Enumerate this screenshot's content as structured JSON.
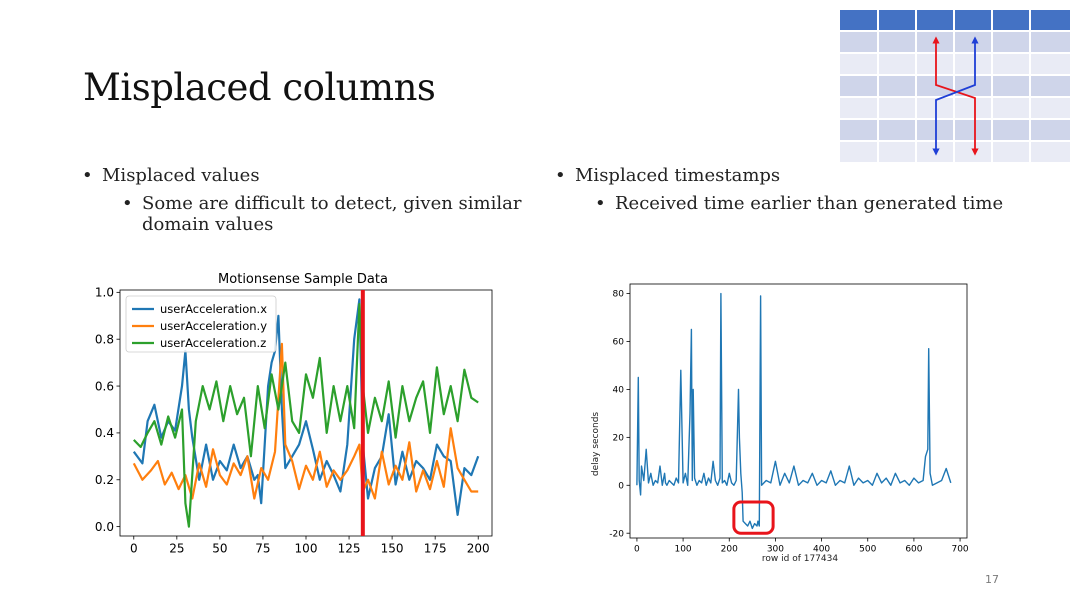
{
  "slide": {
    "title": "Misplaced columns",
    "page_number": "17",
    "left_bullets": {
      "level1": "Misplaced values",
      "level2": "Some are difficult to detect, given similar domain values"
    },
    "right_bullets": {
      "level1": "Misplaced timestamps",
      "level2": "Received time earlier than generated time"
    }
  },
  "colors": {
    "series_x": "#1f77b4",
    "series_y": "#ff7f0e",
    "series_z": "#2ca02c",
    "highlight_red": "#e8141b",
    "table_header": "#4472c4",
    "table_band_dark": "#cfd5ea",
    "table_band_light": "#e9ebf5",
    "arrow_red": "#e8141b",
    "arrow_blue": "#1f3fd6"
  },
  "icons": {
    "table_swap": "misplaced-columns-table-icon"
  },
  "chart_data": [
    {
      "type": "line",
      "title": "Motionsense Sample Data",
      "xlabel": "",
      "ylabel": "",
      "xlim": [
        -8,
        208
      ],
      "ylim": [
        -0.04,
        1.01
      ],
      "xticks": [
        0,
        25,
        50,
        75,
        100,
        125,
        150,
        175,
        200
      ],
      "yticks": [
        0.0,
        0.2,
        0.4,
        0.6,
        0.8,
        1.0
      ],
      "ytick_labels": [
        "0.0",
        "0.2",
        "0.4",
        "0.6",
        "0.8",
        "1.0"
      ],
      "legend_position": "upper-left",
      "grid": false,
      "vertical_marker": {
        "x": 133
      },
      "series": [
        {
          "name": "userAcceleration.x",
          "x": [
            0,
            5,
            8,
            12,
            16,
            20,
            24,
            28,
            30,
            32,
            34,
            38,
            42,
            46,
            50,
            54,
            58,
            62,
            66,
            70,
            72,
            74,
            76,
            78,
            80,
            82,
            84,
            86,
            88,
            92,
            96,
            100,
            104,
            108,
            112,
            116,
            120,
            124,
            128,
            131,
            133,
            136,
            140,
            144,
            148,
            152,
            156,
            160,
            164,
            168,
            172,
            176,
            180,
            184,
            188,
            192,
            196,
            200
          ],
          "values": [
            0.32,
            0.27,
            0.45,
            0.52,
            0.38,
            0.45,
            0.41,
            0.6,
            0.75,
            0.5,
            0.38,
            0.2,
            0.35,
            0.2,
            0.28,
            0.24,
            0.35,
            0.25,
            0.3,
            0.2,
            0.22,
            0.1,
            0.35,
            0.6,
            0.7,
            0.75,
            0.9,
            0.5,
            0.25,
            0.3,
            0.35,
            0.45,
            0.33,
            0.2,
            0.28,
            0.22,
            0.15,
            0.35,
            0.8,
            0.97,
            0.35,
            0.12,
            0.25,
            0.3,
            0.48,
            0.18,
            0.32,
            0.2,
            0.28,
            0.25,
            0.2,
            0.35,
            0.3,
            0.28,
            0.05,
            0.25,
            0.22,
            0.3
          ]
        },
        {
          "name": "userAcceleration.y",
          "x": [
            0,
            5,
            10,
            14,
            18,
            22,
            26,
            30,
            34,
            38,
            42,
            46,
            50,
            54,
            58,
            62,
            66,
            70,
            74,
            78,
            82,
            86,
            88,
            92,
            96,
            100,
            104,
            108,
            112,
            116,
            120,
            124,
            128,
            131,
            133,
            136,
            140,
            144,
            148,
            152,
            156,
            160,
            164,
            168,
            172,
            176,
            180,
            184,
            188,
            192,
            196,
            200
          ],
          "values": [
            0.27,
            0.2,
            0.24,
            0.28,
            0.18,
            0.23,
            0.16,
            0.22,
            0.12,
            0.27,
            0.17,
            0.33,
            0.22,
            0.18,
            0.27,
            0.22,
            0.3,
            0.12,
            0.25,
            0.2,
            0.32,
            0.78,
            0.35,
            0.28,
            0.16,
            0.26,
            0.2,
            0.32,
            0.17,
            0.24,
            0.2,
            0.24,
            0.3,
            0.35,
            0.15,
            0.2,
            0.12,
            0.32,
            0.18,
            0.26,
            0.2,
            0.36,
            0.15,
            0.24,
            0.16,
            0.28,
            0.17,
            0.42,
            0.25,
            0.2,
            0.15,
            0.15
          ]
        },
        {
          "name": "userAcceleration.z",
          "x": [
            0,
            4,
            8,
            12,
            16,
            20,
            24,
            28,
            30,
            32,
            36,
            40,
            44,
            48,
            52,
            56,
            60,
            64,
            68,
            72,
            76,
            80,
            84,
            88,
            92,
            96,
            100,
            104,
            108,
            112,
            116,
            120,
            124,
            128,
            131,
            133,
            136,
            140,
            144,
            148,
            152,
            156,
            160,
            164,
            168,
            172,
            176,
            180,
            184,
            188,
            192,
            196,
            200
          ],
          "values": [
            0.37,
            0.34,
            0.4,
            0.45,
            0.35,
            0.47,
            0.38,
            0.5,
            0.1,
            0.0,
            0.45,
            0.6,
            0.5,
            0.62,
            0.45,
            0.6,
            0.48,
            0.55,
            0.3,
            0.6,
            0.42,
            0.65,
            0.5,
            0.7,
            0.45,
            0.4,
            0.65,
            0.55,
            0.72,
            0.4,
            0.6,
            0.45,
            0.6,
            0.42,
            0.95,
            0.6,
            0.4,
            0.55,
            0.45,
            0.62,
            0.38,
            0.6,
            0.45,
            0.55,
            0.62,
            0.4,
            0.68,
            0.48,
            0.6,
            0.45,
            0.67,
            0.55,
            0.53
          ]
        }
      ]
    },
    {
      "type": "line",
      "title": "",
      "xlabel": "row id of 177434",
      "ylabel": "delay seconds",
      "xlim": [
        -15,
        715
      ],
      "ylim": [
        -22,
        84
      ],
      "xticks": [
        0,
        100,
        200,
        300,
        400,
        500,
        600,
        700
      ],
      "yticks": [
        -20,
        0,
        20,
        40,
        60,
        80
      ],
      "grid": false,
      "highlight_box": {
        "x_range": [
          210,
          295
        ],
        "y_range": [
          -20,
          -7
        ]
      },
      "series": [
        {
          "name": "",
          "x": [
            0,
            3,
            5,
            8,
            10,
            15,
            20,
            25,
            30,
            32,
            35,
            40,
            45,
            50,
            55,
            60,
            62,
            65,
            70,
            75,
            80,
            85,
            90,
            95,
            100,
            105,
            110,
            115,
            118,
            120,
            122,
            125,
            130,
            135,
            140,
            145,
            150,
            155,
            160,
            165,
            170,
            175,
            180,
            182,
            185,
            190,
            195,
            200,
            205,
            210,
            215,
            220,
            222,
            225,
            228,
            230,
            235,
            240,
            245,
            250,
            255,
            260,
            262,
            265,
            268,
            270,
            275,
            280,
            290,
            300,
            310,
            320,
            330,
            340,
            350,
            360,
            370,
            380,
            390,
            400,
            410,
            420,
            430,
            440,
            450,
            460,
            470,
            480,
            490,
            500,
            510,
            520,
            530,
            540,
            550,
            560,
            570,
            580,
            590,
            600,
            610,
            620,
            625,
            630,
            632,
            635,
            640,
            650,
            660,
            670,
            680
          ],
          "values": [
            0,
            45,
            2,
            -4,
            8,
            2,
            15,
            1,
            5,
            3,
            0,
            2,
            1,
            8,
            0,
            5,
            1,
            0,
            2,
            1,
            0,
            3,
            1,
            48,
            1,
            5,
            0,
            30,
            65,
            2,
            40,
            3,
            0,
            2,
            1,
            5,
            0,
            3,
            1,
            10,
            2,
            0,
            3,
            80,
            1,
            2,
            0,
            5,
            1,
            0,
            2,
            40,
            20,
            5,
            -3,
            -15,
            -16,
            -17,
            -15,
            -18,
            -16,
            -17,
            -15,
            -17,
            79,
            0,
            1,
            2,
            1,
            10,
            0,
            5,
            1,
            8,
            0,
            2,
            1,
            5,
            0,
            2,
            1,
            6,
            0,
            2,
            1,
            8,
            0,
            3,
            1,
            2,
            0,
            5,
            1,
            3,
            0,
            5,
            1,
            2,
            0,
            3,
            1,
            2,
            12,
            15,
            57,
            5,
            0,
            1,
            2,
            7,
            1
          ]
        }
      ]
    }
  ]
}
